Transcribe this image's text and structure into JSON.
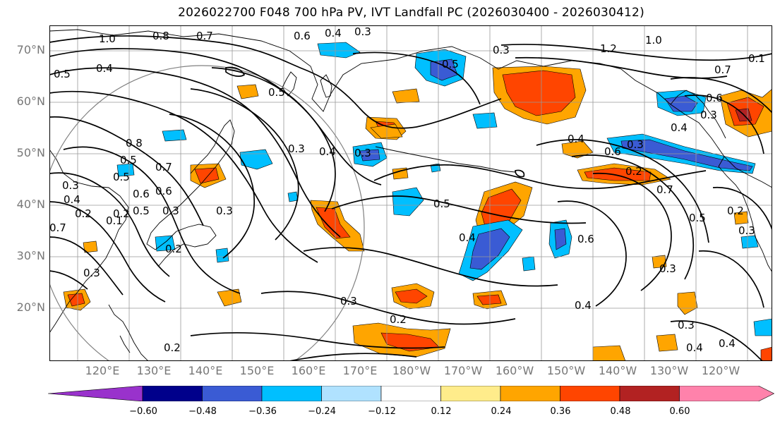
{
  "title": "2026022700 F048 700 hPa PV, IVT Landfall PC (2026030400 - 2026030412)",
  "lat_labels": [
    "70°N",
    "60°N",
    "50°N",
    "40°N",
    "30°N",
    "20°N"
  ],
  "lon_labels": [
    "120°E",
    "130°E",
    "140°E",
    "150°E",
    "160°E",
    "170°E",
    "180°W",
    "170°W",
    "160°W",
    "150°W",
    "140°W",
    "130°W",
    "120°W"
  ],
  "contour_labels": [
    "1.0",
    "0.8",
    "0.7",
    "0.6",
    "0.4",
    "0.3",
    "0.5",
    "0.4",
    "0.5",
    "0.3",
    "1.2",
    "1.0",
    "0.7",
    "0.1",
    "0.6",
    "0.3",
    "0.4",
    "0.5",
    "0.8",
    "0.5",
    "0.3",
    "0.4",
    "0.7",
    "0.6",
    "0.5",
    "0.3",
    "0.4",
    "0.2",
    "0.7",
    "0.2",
    "0.5",
    "0.6",
    "0.1",
    "0.3",
    "0.2",
    "0.3",
    "0.4",
    "0.6",
    "0.3",
    "0.3",
    "0.2",
    "0.5",
    "0.3",
    "0.3",
    "0.2",
    "0.4",
    "0.4",
    "0.2",
    "0.3",
    "0.4",
    "0.3",
    "0.2",
    "0.3",
    "0.7",
    "0.5",
    "0.4",
    "0.6"
  ],
  "colorbar": {
    "tick_labels": [
      "−0.60",
      "−0.48",
      "−0.36",
      "−0.24",
      "−0.12",
      "0.12",
      "0.24",
      "0.36",
      "0.48",
      "0.60"
    ],
    "colors": [
      "#9932cc",
      "#00008b",
      "#3a5bd4",
      "#00bfff",
      "#b0e2ff",
      "#ffffff",
      "#ffec8b",
      "#ffa500",
      "#ff4500",
      "#b22222",
      "#ff82ab"
    ]
  },
  "colors": {
    "contour": "#000000",
    "coast": "#000000",
    "grid": "#999999",
    "circle": "#808080",
    "axis_label": "#777777"
  }
}
